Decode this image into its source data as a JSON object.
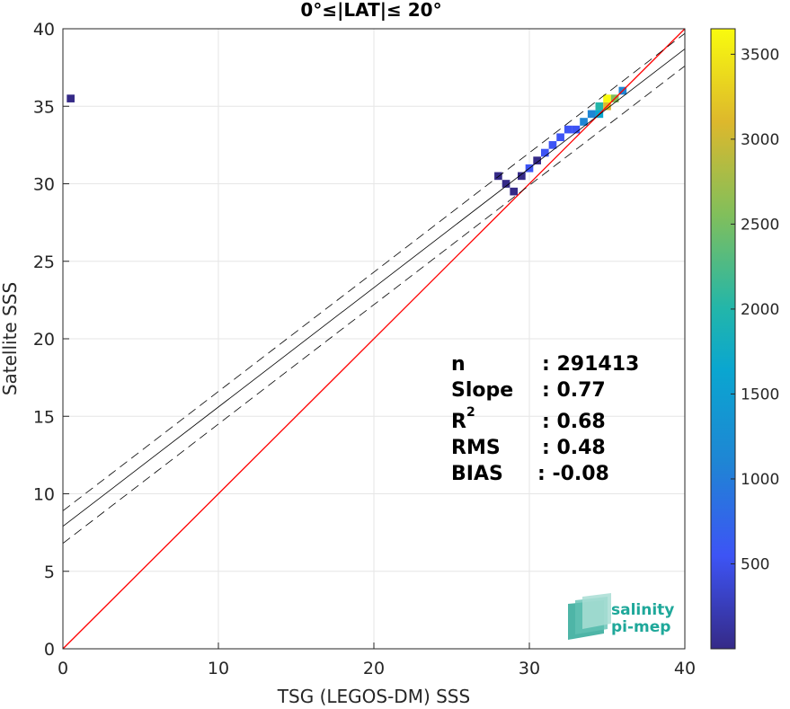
{
  "chart_data": {
    "type": "heatmap",
    "title": "0°≤|LAT|≤ 20°",
    "xlabel": "TSG (LEGOS-DM) SSS",
    "ylabel": "Satellite SSS",
    "xlim": [
      0,
      40
    ],
    "ylim": [
      0,
      40
    ],
    "xticks": [
      "0",
      "10",
      "20",
      "30",
      "40"
    ],
    "yticks": [
      "0",
      "5",
      "10",
      "15",
      "20",
      "25",
      "30",
      "35",
      "40"
    ],
    "grid": true,
    "density_cells": [
      {
        "x": 28.0,
        "y": 30.5,
        "count": 150
      },
      {
        "x": 28.5,
        "y": 30.0,
        "count": 200
      },
      {
        "x": 29.0,
        "y": 29.5,
        "count": 120
      },
      {
        "x": 29.5,
        "y": 30.5,
        "count": 250
      },
      {
        "x": 30.0,
        "y": 31.0,
        "count": 300
      },
      {
        "x": 30.5,
        "y": 31.5,
        "count": 260
      },
      {
        "x": 31.0,
        "y": 32.0,
        "count": 350
      },
      {
        "x": 31.5,
        "y": 32.5,
        "count": 420
      },
      {
        "x": 32.0,
        "y": 33.0,
        "count": 500
      },
      {
        "x": 32.5,
        "y": 33.5,
        "count": 650
      },
      {
        "x": 33.0,
        "y": 33.5,
        "count": 700
      },
      {
        "x": 33.5,
        "y": 34.0,
        "count": 900
      },
      {
        "x": 34.0,
        "y": 34.5,
        "count": 1300
      },
      {
        "x": 34.5,
        "y": 34.5,
        "count": 1800
      },
      {
        "x": 34.5,
        "y": 35.0,
        "count": 2200
      },
      {
        "x": 35.0,
        "y": 35.0,
        "count": 2900
      },
      {
        "x": 35.0,
        "y": 35.5,
        "count": 3400
      },
      {
        "x": 35.5,
        "y": 35.5,
        "count": 2400
      },
      {
        "x": 36.0,
        "y": 36.0,
        "count": 1200
      },
      {
        "x": 0.5,
        "y": 35.5,
        "count": 100
      }
    ],
    "lines": [
      {
        "name": "1:1",
        "color": "#ff0000",
        "x": [
          0,
          40
        ],
        "y": [
          0,
          40
        ],
        "style": "solid"
      },
      {
        "name": "fit",
        "color": "#000000",
        "x": [
          0,
          40
        ],
        "y": [
          7.9,
          38.7
        ],
        "style": "solid"
      },
      {
        "name": "fit+rms",
        "color": "#000000",
        "x": [
          0,
          40
        ],
        "y": [
          8.9,
          39.7
        ],
        "style": "dashed"
      },
      {
        "name": "fit-rms",
        "color": "#000000",
        "x": [
          0,
          40
        ],
        "y": [
          6.8,
          37.6
        ],
        "style": "dashed"
      }
    ],
    "colorbar": {
      "min": 0,
      "max": 3650,
      "ticks": [
        "500",
        "1000",
        "1500",
        "2000",
        "2500",
        "3000",
        "3500"
      ],
      "colormap": "parula"
    },
    "stats": [
      {
        "label": "n",
        "value": ": 291413"
      },
      {
        "label": "Slope",
        "value": ": 0.77"
      },
      {
        "label": "R",
        "sup": "2",
        "value": ": 0.68"
      },
      {
        "label": "RMS",
        "value": ": 0.48"
      },
      {
        "label": "BIAS",
        "value": ": -0.08"
      }
    ]
  },
  "logo": {
    "line1": "salinity",
    "line2": "pi-mep",
    "color": "#1fa89a"
  }
}
